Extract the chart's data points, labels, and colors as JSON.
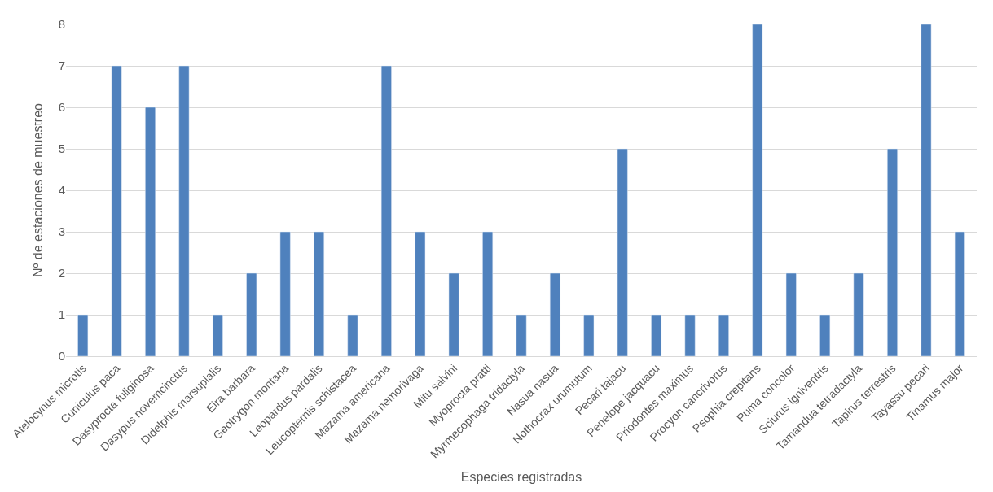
{
  "chart_data": {
    "type": "bar",
    "xlabel": "Especies registradas",
    "ylabel": "Nº de estaciones de muestreo",
    "categories": [
      "Atelocynus microtis",
      "Cuniculus paca",
      "Dasyprocta fuliginosa",
      "Dasypus novemcinctus",
      "Didelphis marsupialis",
      "Eira barbara",
      "Geotrygon montana",
      "Leopardus pardalis",
      "Leucopternis schistacea",
      "Mazama americana",
      "Mazama nemorivaga",
      "Mitu salvini",
      "Myoprocta pratti",
      "Myrmecophaga tridactyla",
      "Nasua nasua",
      "Nothocrax urumutum",
      "Pecari tajacu",
      "Penelope jacquacu",
      "Priodontes maximus",
      "Procyon cancrivorus",
      "Psophia crepitans",
      "Puma concolor",
      "Sciurus igniventris",
      "Tamandua tetradactyla",
      "Tapirus terrestris",
      "Tayassu pecari",
      "Tinamus major"
    ],
    "values": [
      1,
      7,
      6,
      7,
      1,
      2,
      3,
      3,
      1,
      7,
      3,
      2,
      3,
      1,
      2,
      1,
      5,
      1,
      1,
      1,
      8,
      2,
      1,
      2,
      5,
      8,
      3
    ],
    "color": "#4f81bd",
    "ylim": [
      0,
      8
    ],
    "yticks": [
      0,
      1,
      2,
      3,
      4,
      5,
      6,
      7,
      8
    ],
    "grid": "y"
  }
}
